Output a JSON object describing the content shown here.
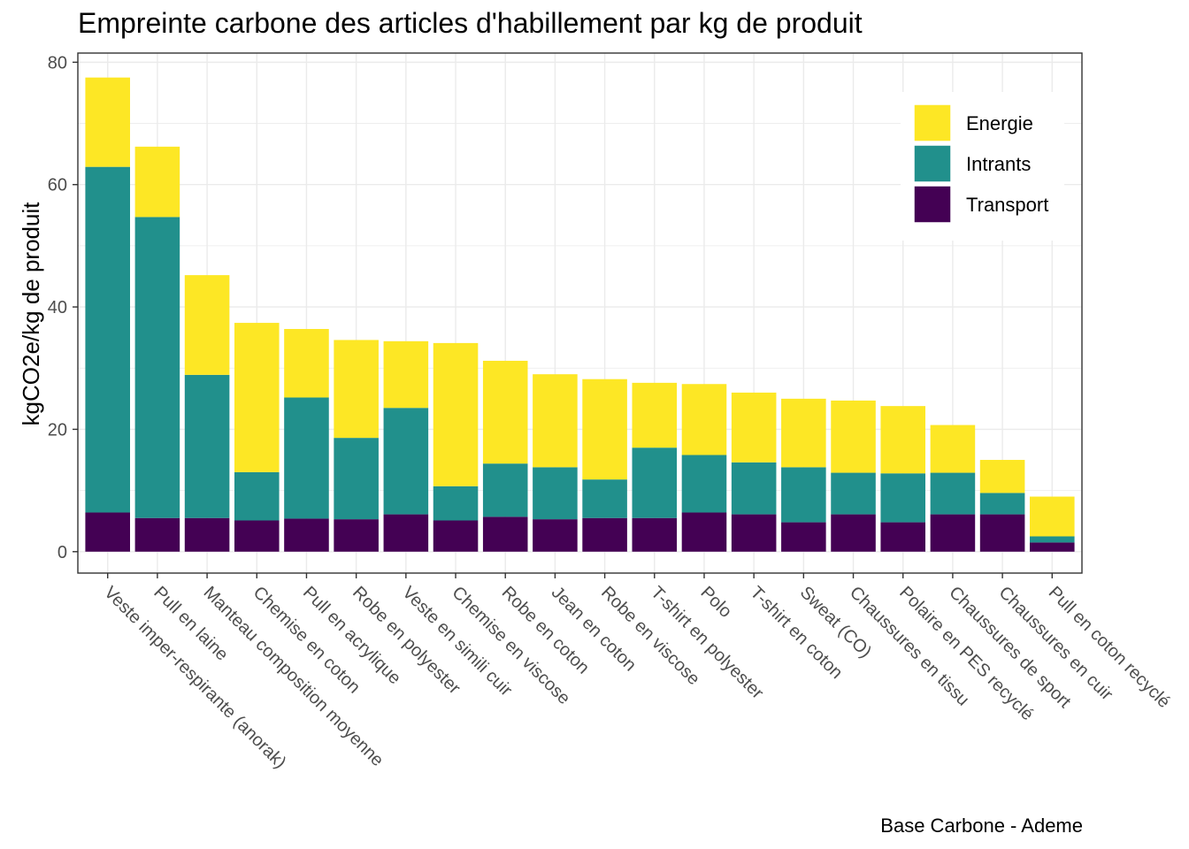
{
  "chart_data": {
    "type": "bar",
    "stacked": true,
    "title": "Empreinte carbone des articles d'habillement par kg de produit",
    "xlabel": "",
    "ylabel": "kgCO2e/kg de produit",
    "caption": "Base Carbone - Ademe",
    "ylim": [
      -3.5,
      81.5
    ],
    "yticks": [
      0,
      20,
      40,
      60,
      80
    ],
    "grid": true,
    "legend_position": "top-right",
    "categories": [
      "Veste imper-respirante (anorak)",
      "Pull en laine",
      "Manteau composition moyenne",
      "Chemise en coton",
      "Pull en acrylique",
      "Robe en polyester",
      "Veste en simili cuir",
      "Chemise en viscose",
      "Robe en coton",
      "Jean en coton",
      "Robe en viscose",
      "T-shirt en polyester",
      "Polo",
      "T-shirt en coton",
      "Sweat (CO)",
      "Chaussures en tissu",
      "Polaire en PES recyclé",
      "Chaussures de sport",
      "Chaussures en cuir",
      "Pull en coton recyclé"
    ],
    "series": [
      {
        "name": "Transport",
        "color": "#440154",
        "values": [
          6.4,
          5.5,
          5.5,
          5.1,
          5.4,
          5.3,
          6.1,
          5.1,
          5.7,
          5.3,
          5.5,
          5.5,
          6.4,
          6.1,
          4.8,
          6.1,
          4.8,
          6.1,
          6.1,
          1.5
        ]
      },
      {
        "name": "Intrants",
        "color": "#21908C",
        "values": [
          56.5,
          49.2,
          23.4,
          7.9,
          19.8,
          13.3,
          17.4,
          5.6,
          8.7,
          8.5,
          6.3,
          11.5,
          9.4,
          8.5,
          9.0,
          6.8,
          8.0,
          6.8,
          3.5,
          1.0
        ]
      },
      {
        "name": "Energie",
        "color": "#FDE725",
        "values": [
          14.6,
          11.5,
          16.3,
          24.4,
          11.2,
          16.0,
          10.9,
          23.4,
          16.8,
          15.2,
          16.4,
          10.6,
          11.6,
          11.4,
          11.2,
          11.8,
          11.0,
          7.8,
          5.4,
          6.5
        ]
      }
    ]
  }
}
